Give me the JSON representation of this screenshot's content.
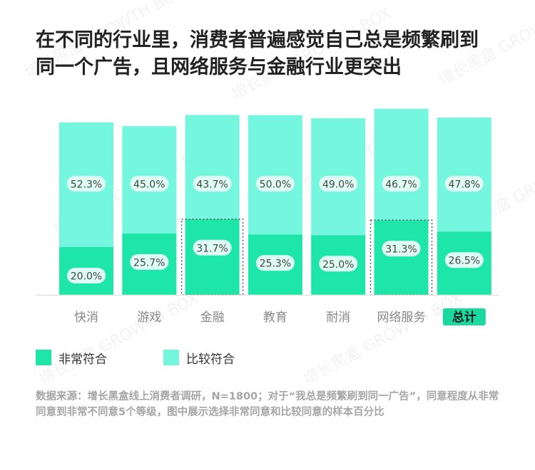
{
  "title": {
    "line1": "在不同的行业里，消费者普遍感觉自己总是频繁刷到",
    "line2": "同一个广告，且网络服务与金融行业更突出"
  },
  "chart_data": {
    "type": "bar",
    "stacked": true,
    "categories": [
      "快消",
      "游戏",
      "金融",
      "教育",
      "耐消",
      "网络服务",
      "总计"
    ],
    "series": [
      {
        "name": "非常符合",
        "values": [
          20.0,
          25.7,
          31.7,
          25.3,
          25.0,
          31.3,
          26.5
        ]
      },
      {
        "name": "比较符合",
        "values": [
          52.3,
          45.0,
          43.7,
          50.0,
          49.0,
          46.7,
          47.8
        ]
      }
    ],
    "highlighted": [
      "金融",
      "网络服务"
    ],
    "highlighted_category_label": "总计",
    "ylim": [
      0,
      100
    ],
    "legend_position": "bottom-left",
    "colors": {
      "非常符合": "#1ee6a8",
      "比较符合": "#74f7de"
    }
  },
  "legend": [
    {
      "label": "非常符合",
      "color": "#1ee6a8"
    },
    {
      "label": "比较符合",
      "color": "#74f7de"
    }
  ],
  "source": "数据来源：增长黑盒线上消费者调研，N=1800；对于“我总是频繁刷到同一广告”，同意程度从非常同意到非常不同意5个等级，图中展示选择非常同意和比较同意的样本百分比",
  "watermark": "增长黑盒 GROWTH BOX"
}
